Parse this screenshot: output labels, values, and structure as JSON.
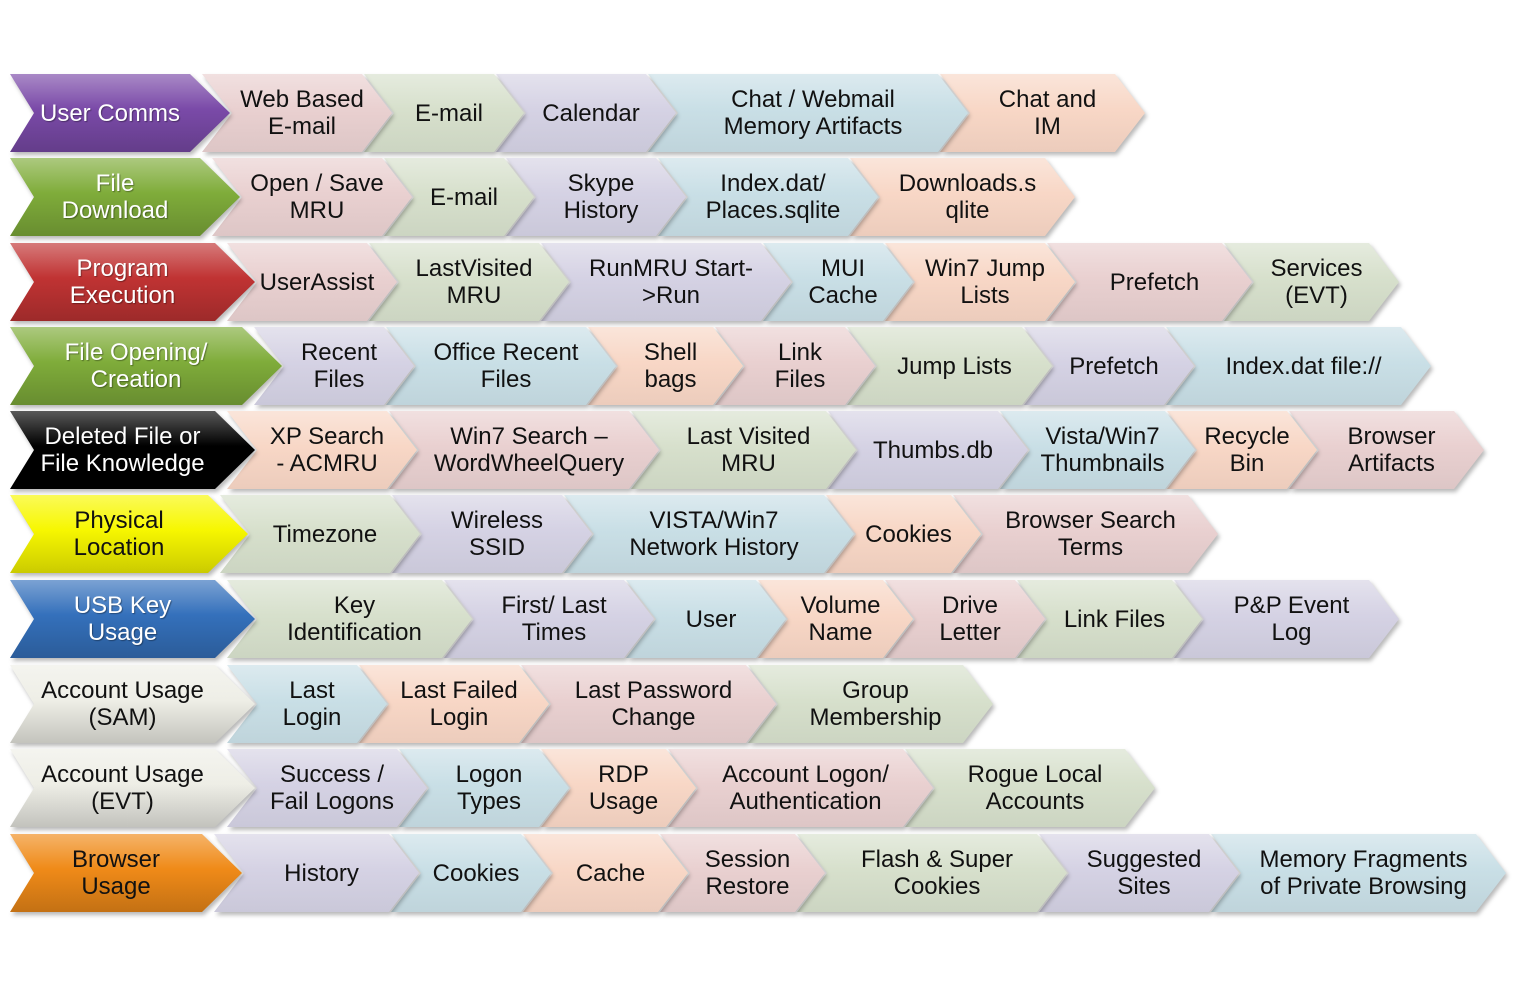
{
  "colors": {
    "purple": "#7a4aa8",
    "green": "#7fac3a",
    "red": "#c03333",
    "black": "#000000",
    "yellow": "#f7f700",
    "blue": "#3470bb",
    "offwhite": "#eeeee6",
    "orange": "#ef8a18",
    "pink": "#e9d0d0",
    "sage": "#d7e0cc",
    "lavender": "#d5d2e4",
    "lightblue": "#c9dfe6",
    "peach": "#f8d7c6"
  },
  "rows": [
    {
      "category": {
        "label": "User Comms",
        "color": "purple",
        "text_color": "#ffffff"
      },
      "items": [
        {
          "label": "Web Based\nE-mail",
          "color": "pink"
        },
        {
          "label": "E-mail",
          "color": "sage"
        },
        {
          "label": "Calendar",
          "color": "lavender"
        },
        {
          "label": "Chat / Webmail\nMemory Artifacts",
          "color": "lightblue"
        },
        {
          "label": "Chat and\nIM",
          "color": "peach"
        }
      ]
    },
    {
      "category": {
        "label": "File\nDownload",
        "color": "green",
        "text_color": "#ffffff"
      },
      "items": [
        {
          "label": "Open / Save\nMRU",
          "color": "pink"
        },
        {
          "label": "E-mail",
          "color": "sage"
        },
        {
          "label": "Skype\nHistory",
          "color": "lavender"
        },
        {
          "label": "Index.dat/\nPlaces.sqlite",
          "color": "lightblue"
        },
        {
          "label": "Downloads.s\nqlite",
          "color": "peach"
        }
      ]
    },
    {
      "category": {
        "label": "Program\nExecution",
        "color": "red",
        "text_color": "#ffffff"
      },
      "items": [
        {
          "label": "UserAssist",
          "color": "pink"
        },
        {
          "label": "LastVisited\nMRU",
          "color": "sage"
        },
        {
          "label": "RunMRU Start-\n>Run",
          "color": "lavender"
        },
        {
          "label": "MUI\nCache",
          "color": "lightblue"
        },
        {
          "label": "Win7 Jump\nLists",
          "color": "peach"
        },
        {
          "label": "Prefetch",
          "color": "pink"
        },
        {
          "label": "Services\n(EVT)",
          "color": "sage"
        }
      ]
    },
    {
      "category": {
        "label": "File Opening/\nCreation",
        "color": "green",
        "text_color": "#ffffff"
      },
      "items": [
        {
          "label": "Recent\nFiles",
          "color": "lavender"
        },
        {
          "label": "Office Recent\nFiles",
          "color": "lightblue"
        },
        {
          "label": "Shell\nbags",
          "color": "peach"
        },
        {
          "label": "Link\nFiles",
          "color": "pink"
        },
        {
          "label": "Jump Lists",
          "color": "sage"
        },
        {
          "label": "Prefetch",
          "color": "lavender"
        },
        {
          "label": "Index.dat file://",
          "color": "lightblue"
        }
      ]
    },
    {
      "category": {
        "label": "Deleted File or\nFile Knowledge",
        "color": "black",
        "text_color": "#ffffff"
      },
      "items": [
        {
          "label": "XP Search\n- ACMRU",
          "color": "peach"
        },
        {
          "label": "Win7 Search –\nWordWheelQuery",
          "color": "pink"
        },
        {
          "label": "Last Visited\nMRU",
          "color": "sage"
        },
        {
          "label": "Thumbs.db",
          "color": "lavender"
        },
        {
          "label": "Vista/Win7\nThumbnails",
          "color": "lightblue"
        },
        {
          "label": "Recycle\nBin",
          "color": "peach"
        },
        {
          "label": "Browser\nArtifacts",
          "color": "pink"
        }
      ]
    },
    {
      "category": {
        "label": "Physical\nLocation",
        "color": "yellow",
        "text_color": "#111111"
      },
      "items": [
        {
          "label": "Timezone",
          "color": "sage"
        },
        {
          "label": "Wireless\nSSID",
          "color": "lavender"
        },
        {
          "label": "VISTA/Win7\nNetwork History",
          "color": "lightblue"
        },
        {
          "label": "Cookies",
          "color": "peach"
        },
        {
          "label": "Browser Search\nTerms",
          "color": "pink"
        }
      ]
    },
    {
      "category": {
        "label": "USB Key\nUsage",
        "color": "blue",
        "text_color": "#ffffff"
      },
      "items": [
        {
          "label": "Key\nIdentification",
          "color": "sage"
        },
        {
          "label": "First/ Last\nTimes",
          "color": "lavender"
        },
        {
          "label": "User",
          "color": "lightblue"
        },
        {
          "label": "Volume\nName",
          "color": "peach"
        },
        {
          "label": "Drive\nLetter",
          "color": "pink"
        },
        {
          "label": "Link Files",
          "color": "sage"
        },
        {
          "label": "P&P Event\nLog",
          "color": "lavender"
        }
      ]
    },
    {
      "category": {
        "label": "Account Usage\n(SAM)",
        "color": "offwhite",
        "text_color": "#111111"
      },
      "items": [
        {
          "label": "Last\nLogin",
          "color": "lightblue"
        },
        {
          "label": "Last Failed\nLogin",
          "color": "peach"
        },
        {
          "label": "Last Password\nChange",
          "color": "pink"
        },
        {
          "label": "Group\nMembership",
          "color": "sage"
        }
      ]
    },
    {
      "category": {
        "label": "Account Usage\n(EVT)",
        "color": "offwhite",
        "text_color": "#111111"
      },
      "items": [
        {
          "label": "Success /\nFail Logons",
          "color": "lavender"
        },
        {
          "label": "Logon\nTypes",
          "color": "lightblue"
        },
        {
          "label": "RDP\nUsage",
          "color": "peach"
        },
        {
          "label": "Account Logon/\nAuthentication",
          "color": "pink"
        },
        {
          "label": "Rogue Local\nAccounts",
          "color": "sage"
        }
      ]
    },
    {
      "category": {
        "label": "Browser\nUsage",
        "color": "orange",
        "text_color": "#111111"
      },
      "items": [
        {
          "label": "History",
          "color": "lavender"
        },
        {
          "label": "Cookies",
          "color": "lightblue"
        },
        {
          "label": "Cache",
          "color": "peach"
        },
        {
          "label": "Session\nRestore",
          "color": "pink"
        },
        {
          "label": "Flash & Super\nCookies",
          "color": "sage"
        },
        {
          "label": "Suggested\nSites",
          "color": "lavender"
        },
        {
          "label": "Memory Fragments\nof Private Browsing",
          "color": "lightblue"
        }
      ]
    }
  ]
}
